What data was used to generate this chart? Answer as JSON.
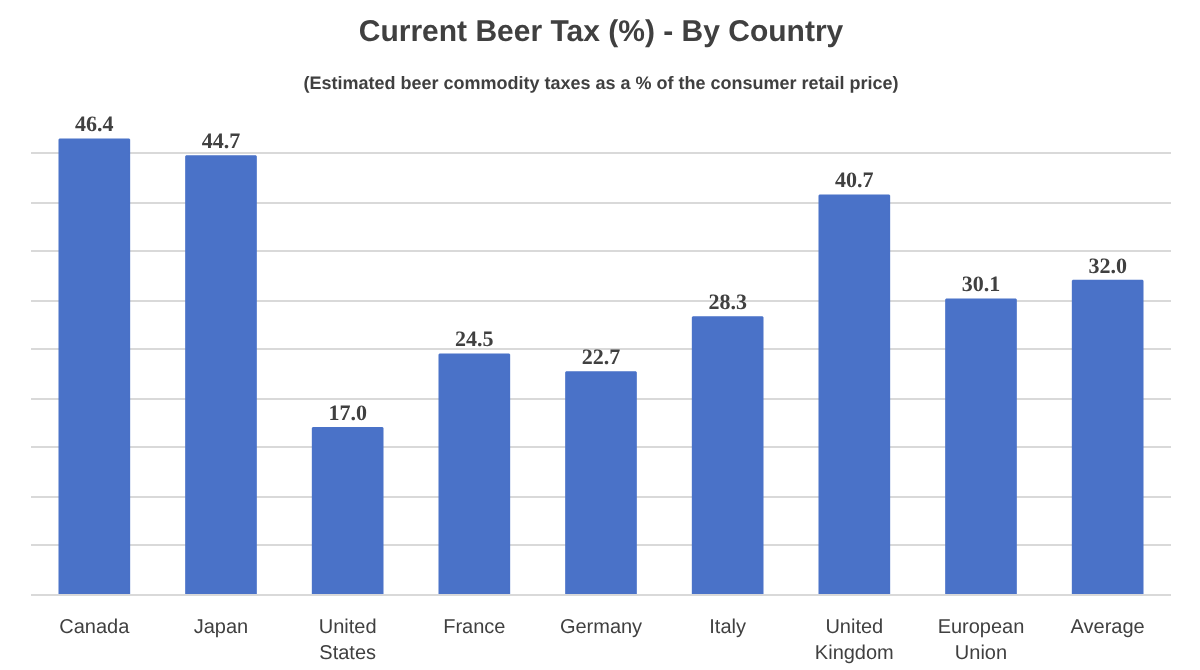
{
  "chart_data": {
    "type": "bar",
    "title": "Current Beer Tax (%) - By Country",
    "subtitle": "(Estimated beer commodity taxes as a % of the consumer retail price)",
    "categories": [
      "Canada",
      "Japan",
      "United States",
      "France",
      "Germany",
      "Italy",
      "United Kingdom",
      "European Union",
      "Average"
    ],
    "values": [
      46.4,
      44.7,
      17.0,
      24.5,
      22.7,
      28.3,
      40.7,
      30.1,
      32.0
    ],
    "value_labels": [
      "46.4",
      "44.7",
      "17.0",
      "24.5",
      "22.7",
      "28.3",
      "40.7",
      "30.1",
      "32.0"
    ],
    "color": "#4a72c8",
    "yticks": [
      {
        "value": 0,
        "label": null
      },
      {
        "value": 5,
        "label": null
      },
      {
        "value": 10,
        "label": null
      },
      {
        "value": 15,
        "label": null
      },
      {
        "value": 20,
        "label": null
      },
      {
        "value": 25,
        "label": null
      },
      {
        "value": 30,
        "label": null
      },
      {
        "value": 35,
        "label": null
      },
      {
        "value": 40,
        "label": null
      },
      {
        "value": 45,
        "label": null
      }
    ],
    "grid": "y",
    "tick_labels": "x"
  }
}
